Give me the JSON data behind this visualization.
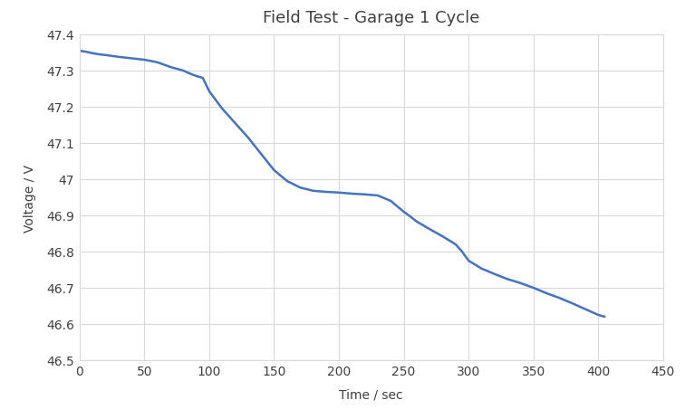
{
  "title": "Field Test - Garage 1 Cycle",
  "xlabel": "Time / sec",
  "ylabel": "Voltage / V",
  "xlim": [
    0,
    450
  ],
  "ylim": [
    46.5,
    47.4
  ],
  "xticks": [
    0,
    50,
    100,
    150,
    200,
    250,
    300,
    350,
    400,
    450
  ],
  "ytick_vals": [
    46.5,
    46.6,
    46.7,
    46.8,
    46.9,
    47.0,
    47.1,
    47.2,
    47.3,
    47.4
  ],
  "ytick_labels": [
    "46.5",
    "46.6",
    "46.7",
    "46.8",
    "46.9",
    "47",
    "47.1",
    "47.2",
    "47.3",
    "47.4"
  ],
  "line_color": "#4472C4",
  "plot_bg_color": "#FFFFFF",
  "fig_bg_color": "#FFFFFF",
  "grid_color": "#D9D9D9",
  "x": [
    0,
    5,
    10,
    15,
    20,
    30,
    40,
    50,
    60,
    70,
    80,
    85,
    90,
    95,
    100,
    110,
    120,
    130,
    140,
    150,
    160,
    170,
    180,
    190,
    200,
    210,
    220,
    230,
    240,
    245,
    250,
    255,
    260,
    270,
    280,
    290,
    295,
    300,
    310,
    320,
    330,
    340,
    350,
    360,
    370,
    380,
    390,
    400,
    405
  ],
  "y": [
    47.355,
    47.352,
    47.348,
    47.345,
    47.343,
    47.338,
    47.334,
    47.33,
    47.323,
    47.31,
    47.3,
    47.292,
    47.285,
    47.28,
    47.243,
    47.195,
    47.155,
    47.115,
    47.07,
    47.025,
    46.995,
    46.977,
    46.968,
    46.965,
    46.963,
    46.96,
    46.958,
    46.955,
    46.94,
    46.925,
    46.91,
    46.897,
    46.883,
    46.862,
    46.842,
    46.82,
    46.8,
    46.775,
    46.753,
    46.738,
    46.724,
    46.713,
    46.7,
    46.685,
    46.672,
    46.657,
    46.641,
    46.625,
    46.62
  ],
  "line_width": 1.8,
  "title_fontsize": 13,
  "label_fontsize": 10,
  "tick_fontsize": 10,
  "spine_color": "#D9D9D9",
  "text_color": "#404040"
}
